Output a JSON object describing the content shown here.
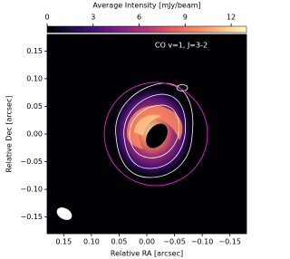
{
  "chart_data": {
    "type": "image",
    "annotation": "CO v=1, J=3-2",
    "xlabel": "Relative RA [arcsec]",
    "ylabel": "Relative Dec [arcsec]",
    "xlim": [
      0.18,
      -0.18
    ],
    "ylim": [
      -0.18,
      0.18
    ],
    "xticks": [
      {
        "value": 0.15,
        "label": "0.15"
      },
      {
        "value": 0.1,
        "label": "0.10"
      },
      {
        "value": 0.05,
        "label": "0.05"
      },
      {
        "value": 0,
        "label": "0.00"
      },
      {
        "value": -0.05,
        "label": "−0.05"
      },
      {
        "value": -0.1,
        "label": "−0.10"
      },
      {
        "value": -0.15,
        "label": "−0.15"
      }
    ],
    "yticks": [
      {
        "value": 0.15,
        "label": "0.15"
      },
      {
        "value": 0.1,
        "label": "0.10"
      },
      {
        "value": 0.05,
        "label": "0.05"
      },
      {
        "value": 0,
        "label": "0.00"
      },
      {
        "value": -0.05,
        "label": "−0.05"
      },
      {
        "value": -0.1,
        "label": "−0.10"
      },
      {
        "value": -0.15,
        "label": "−0.15"
      }
    ],
    "colorbar": {
      "label": "Average Intensity [mJy/beam]",
      "lim": [
        0,
        13
      ],
      "ticks": [
        0,
        3,
        6,
        9,
        12
      ],
      "colors": [
        "#000004",
        "#1c1044",
        "#4f127b",
        "#812581",
        "#b5367a",
        "#e55964",
        "#fb8761",
        "#fec287",
        "#fcfdbf"
      ]
    }
  }
}
